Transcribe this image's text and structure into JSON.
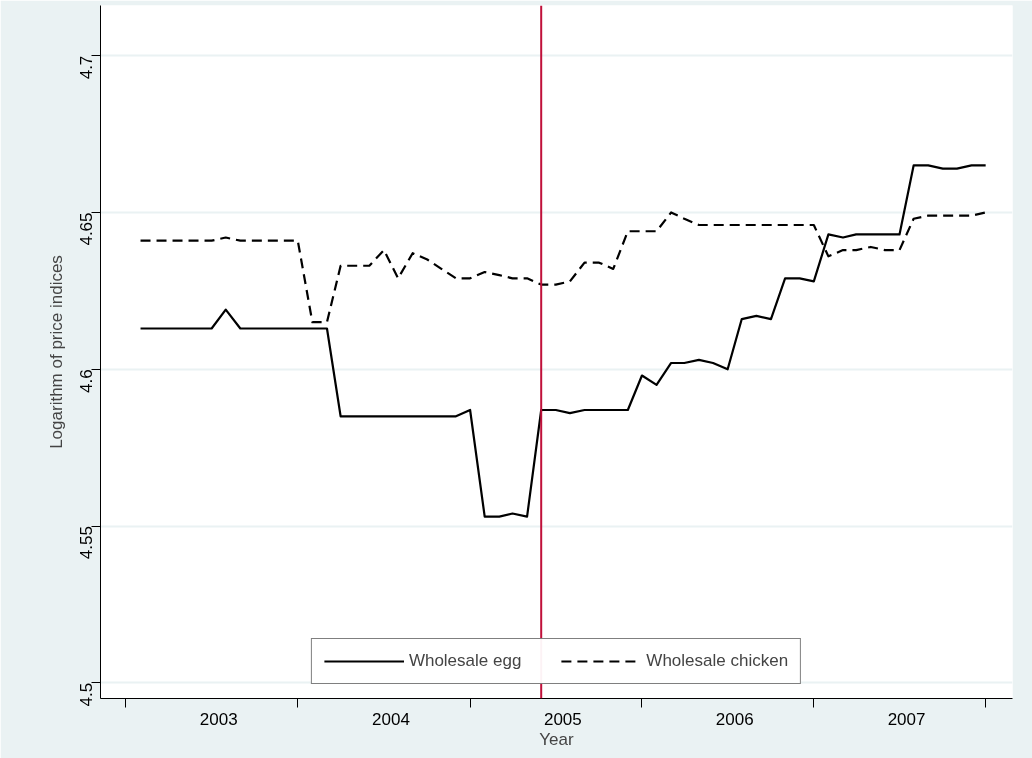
{
  "chart_data": {
    "type": "line",
    "xlabel": "Year",
    "ylabel": "Logarithm of price indices",
    "x": [
      "2003-01",
      "2003-02",
      "2003-03",
      "2003-04",
      "2003-05",
      "2003-06",
      "2003-07",
      "2003-08",
      "2003-09",
      "2003-10",
      "2003-11",
      "2003-12",
      "2004-01",
      "2004-02",
      "2004-03",
      "2004-04",
      "2004-05",
      "2004-06",
      "2004-07",
      "2004-08",
      "2004-09",
      "2004-10",
      "2004-11",
      "2004-12",
      "2005-01",
      "2005-02",
      "2005-03",
      "2005-04",
      "2005-05",
      "2005-06",
      "2005-07",
      "2005-08",
      "2005-09",
      "2005-10",
      "2005-11",
      "2005-12",
      "2006-01",
      "2006-02",
      "2006-03",
      "2006-04",
      "2006-05",
      "2006-06",
      "2006-07",
      "2006-08",
      "2006-09",
      "2006-10",
      "2006-11",
      "2006-12",
      "2007-01",
      "2007-02",
      "2007-03",
      "2007-04",
      "2007-05",
      "2007-06",
      "2007-07",
      "2007-08",
      "2007-09",
      "2007-10",
      "2007-11",
      "2007-12"
    ],
    "series": [
      {
        "name": "Wholesale egg",
        "color": "#000000",
        "line_style": "solid",
        "values": [
          4.613,
          4.613,
          4.613,
          4.613,
          4.613,
          4.613,
          4.619,
          4.613,
          4.613,
          4.613,
          4.613,
          4.613,
          4.613,
          4.613,
          4.585,
          4.585,
          4.585,
          4.585,
          4.585,
          4.585,
          4.585,
          4.585,
          4.585,
          4.587,
          4.553,
          4.553,
          4.554,
          4.553,
          4.587,
          4.587,
          4.586,
          4.587,
          4.587,
          4.587,
          4.587,
          4.598,
          4.595,
          4.602,
          4.602,
          4.603,
          4.602,
          4.6,
          4.616,
          4.617,
          4.616,
          4.629,
          4.629,
          4.628,
          4.643,
          4.642,
          4.643,
          4.643,
          4.643,
          4.643,
          4.665,
          4.665,
          4.664,
          4.664,
          4.665,
          4.665
        ]
      },
      {
        "name": "Wholesale chicken",
        "color": "#000000",
        "line_style": "dashed",
        "values": [
          4.641,
          4.641,
          4.641,
          4.641,
          4.641,
          4.641,
          4.642,
          4.641,
          4.641,
          4.641,
          4.641,
          4.641,
          4.615,
          4.615,
          4.633,
          4.633,
          4.633,
          4.638,
          4.629,
          4.637,
          4.635,
          4.632,
          4.629,
          4.629,
          4.631,
          4.63,
          4.629,
          4.629,
          4.627,
          4.627,
          4.628,
          4.634,
          4.634,
          4.632,
          4.644,
          4.644,
          4.644,
          4.65,
          4.648,
          4.646,
          4.646,
          4.646,
          4.646,
          4.646,
          4.646,
          4.646,
          4.646,
          4.646,
          4.636,
          4.638,
          4.638,
          4.639,
          4.638,
          4.638,
          4.648,
          4.649,
          4.649,
          4.649,
          4.649,
          4.65
        ]
      }
    ],
    "xlim": [
      "2002-10-08",
      "2008-01-27"
    ],
    "xticks": [
      {
        "value": "2002-12",
        "label": null
      },
      {
        "value": "2003-06-16",
        "label": "2003"
      },
      {
        "value": "2003-12",
        "label": null
      },
      {
        "value": "2004-06-16",
        "label": "2004"
      },
      {
        "value": "2004-12",
        "label": null
      },
      {
        "value": "2005-06-16",
        "label": "2005"
      },
      {
        "value": "2005-12",
        "label": null
      },
      {
        "value": "2006-06-16",
        "label": "2006"
      },
      {
        "value": "2006-12",
        "label": null
      },
      {
        "value": "2007-06-16",
        "label": "2007"
      },
      {
        "value": "2007-12",
        "label": null
      }
    ],
    "ylim": [
      4.495,
      4.716
    ],
    "yticks": [
      4.5,
      4.55,
      4.6,
      4.65,
      4.7
    ],
    "ref_lines": [
      {
        "axis": "x",
        "value": "2005-05",
        "color": "#c0103a"
      }
    ],
    "grid": "y",
    "legend": "bottom"
  }
}
